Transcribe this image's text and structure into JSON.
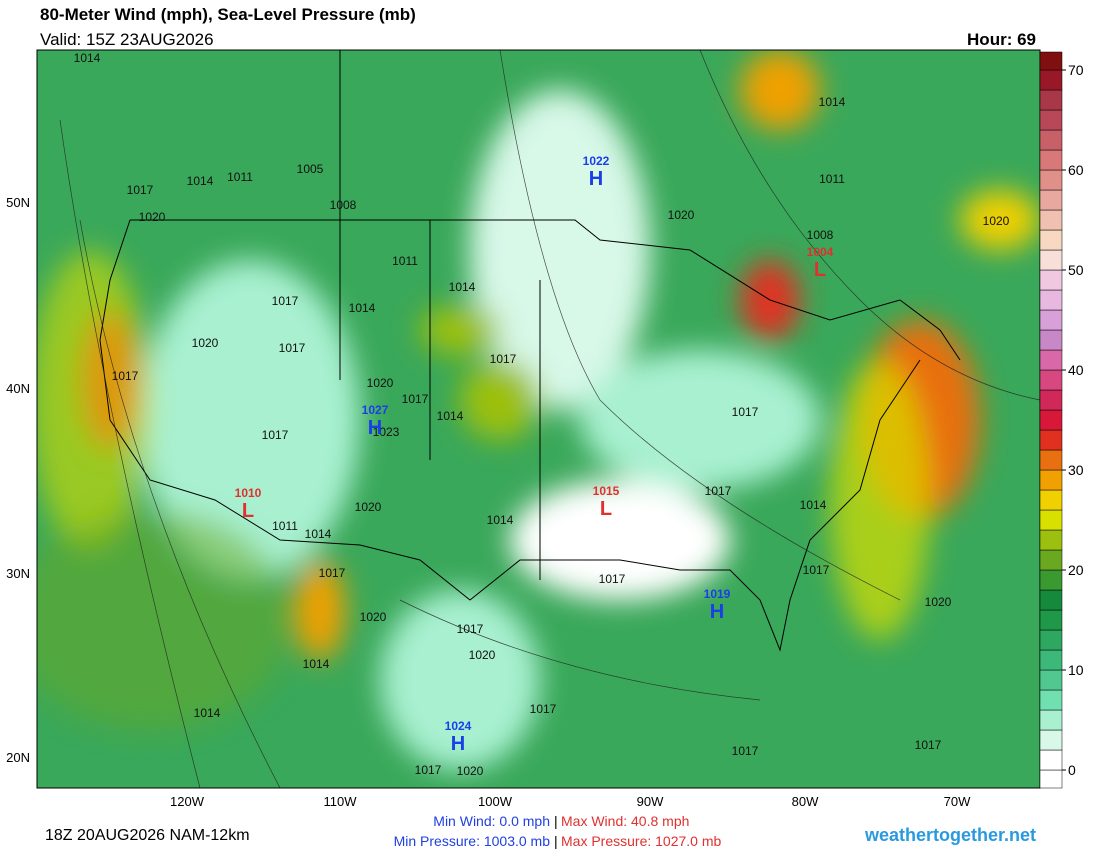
{
  "header": {
    "title": "80-Meter Wind (mph), Sea-Level Pressure (mb)",
    "valid": "Valid: 15Z 23AUG2026",
    "hour": "Hour: 69"
  },
  "map": {
    "latitude_labels": [
      "50N",
      "40N",
      "30N",
      "20N"
    ],
    "longitude_labels": [
      "120W",
      "110W",
      "100W",
      "90W",
      "80W",
      "70W"
    ],
    "isobar_labels": [
      "1014",
      "1017",
      "1014",
      "1011",
      "1005",
      "1008",
      "1020",
      "1011",
      "1014",
      "1017",
      "1014",
      "1020",
      "1017",
      "1017",
      "1020",
      "1017",
      "1014",
      "1023",
      "1017",
      "1017",
      "1011",
      "1014",
      "1020",
      "1014",
      "1017",
      "1020",
      "1017",
      "1020",
      "1014",
      "1014",
      "1017",
      "1017",
      "1020",
      "1017",
      "1017",
      "1017",
      "1014",
      "1017",
      "1020",
      "1017",
      "1017",
      "1020",
      "1014",
      "1011",
      "1008",
      "1020"
    ],
    "pressure_centers": [
      {
        "value": "1022",
        "type": "H"
      },
      {
        "value": "1027",
        "type": "H"
      },
      {
        "value": "1015",
        "type": "L"
      },
      {
        "value": "1010",
        "type": "L"
      },
      {
        "value": "1004",
        "type": "L"
      },
      {
        "value": "1019",
        "type": "H"
      },
      {
        "value": "1024",
        "type": "H"
      }
    ]
  },
  "colorbar": {
    "ticks": [
      0,
      10,
      20,
      30,
      40,
      50,
      60,
      70
    ],
    "range": [
      -1.8,
      71.8
    ],
    "colors": [
      "#ffffff",
      "#ffffff",
      "#d8f8e8",
      "#a8f0d0",
      "#70e0b0",
      "#50c890",
      "#3cb878",
      "#2ea860",
      "#1f9848",
      "#168a3c",
      "#3a9a30",
      "#6aa820",
      "#9cc010",
      "#d8e000",
      "#f0d000",
      "#f0a000",
      "#e87010",
      "#e03020",
      "#d81838",
      "#d02858",
      "#d84880",
      "#d868a8",
      "#c888c8",
      "#d8a0d8",
      "#e8b8e0",
      "#f0c8e0",
      "#f8e0d8",
      "#f8d8c0",
      "#f0c0b0",
      "#e8a8a0",
      "#e09088",
      "#d87878",
      "#c86068",
      "#b84858",
      "#a83848",
      "#981828",
      "#801010"
    ]
  },
  "footer": {
    "run": "18Z 20AUG2026 NAM-12km",
    "min_wind": "Min Wind:   0.0 mph",
    "max_wind": "Max Wind: 40.8 mph",
    "min_pressure": "Min Pressure: 1003.0 mb",
    "max_pressure": "Max Pressure: 1027.0 mb",
    "separator": "|",
    "site": "weathertogether.net"
  }
}
